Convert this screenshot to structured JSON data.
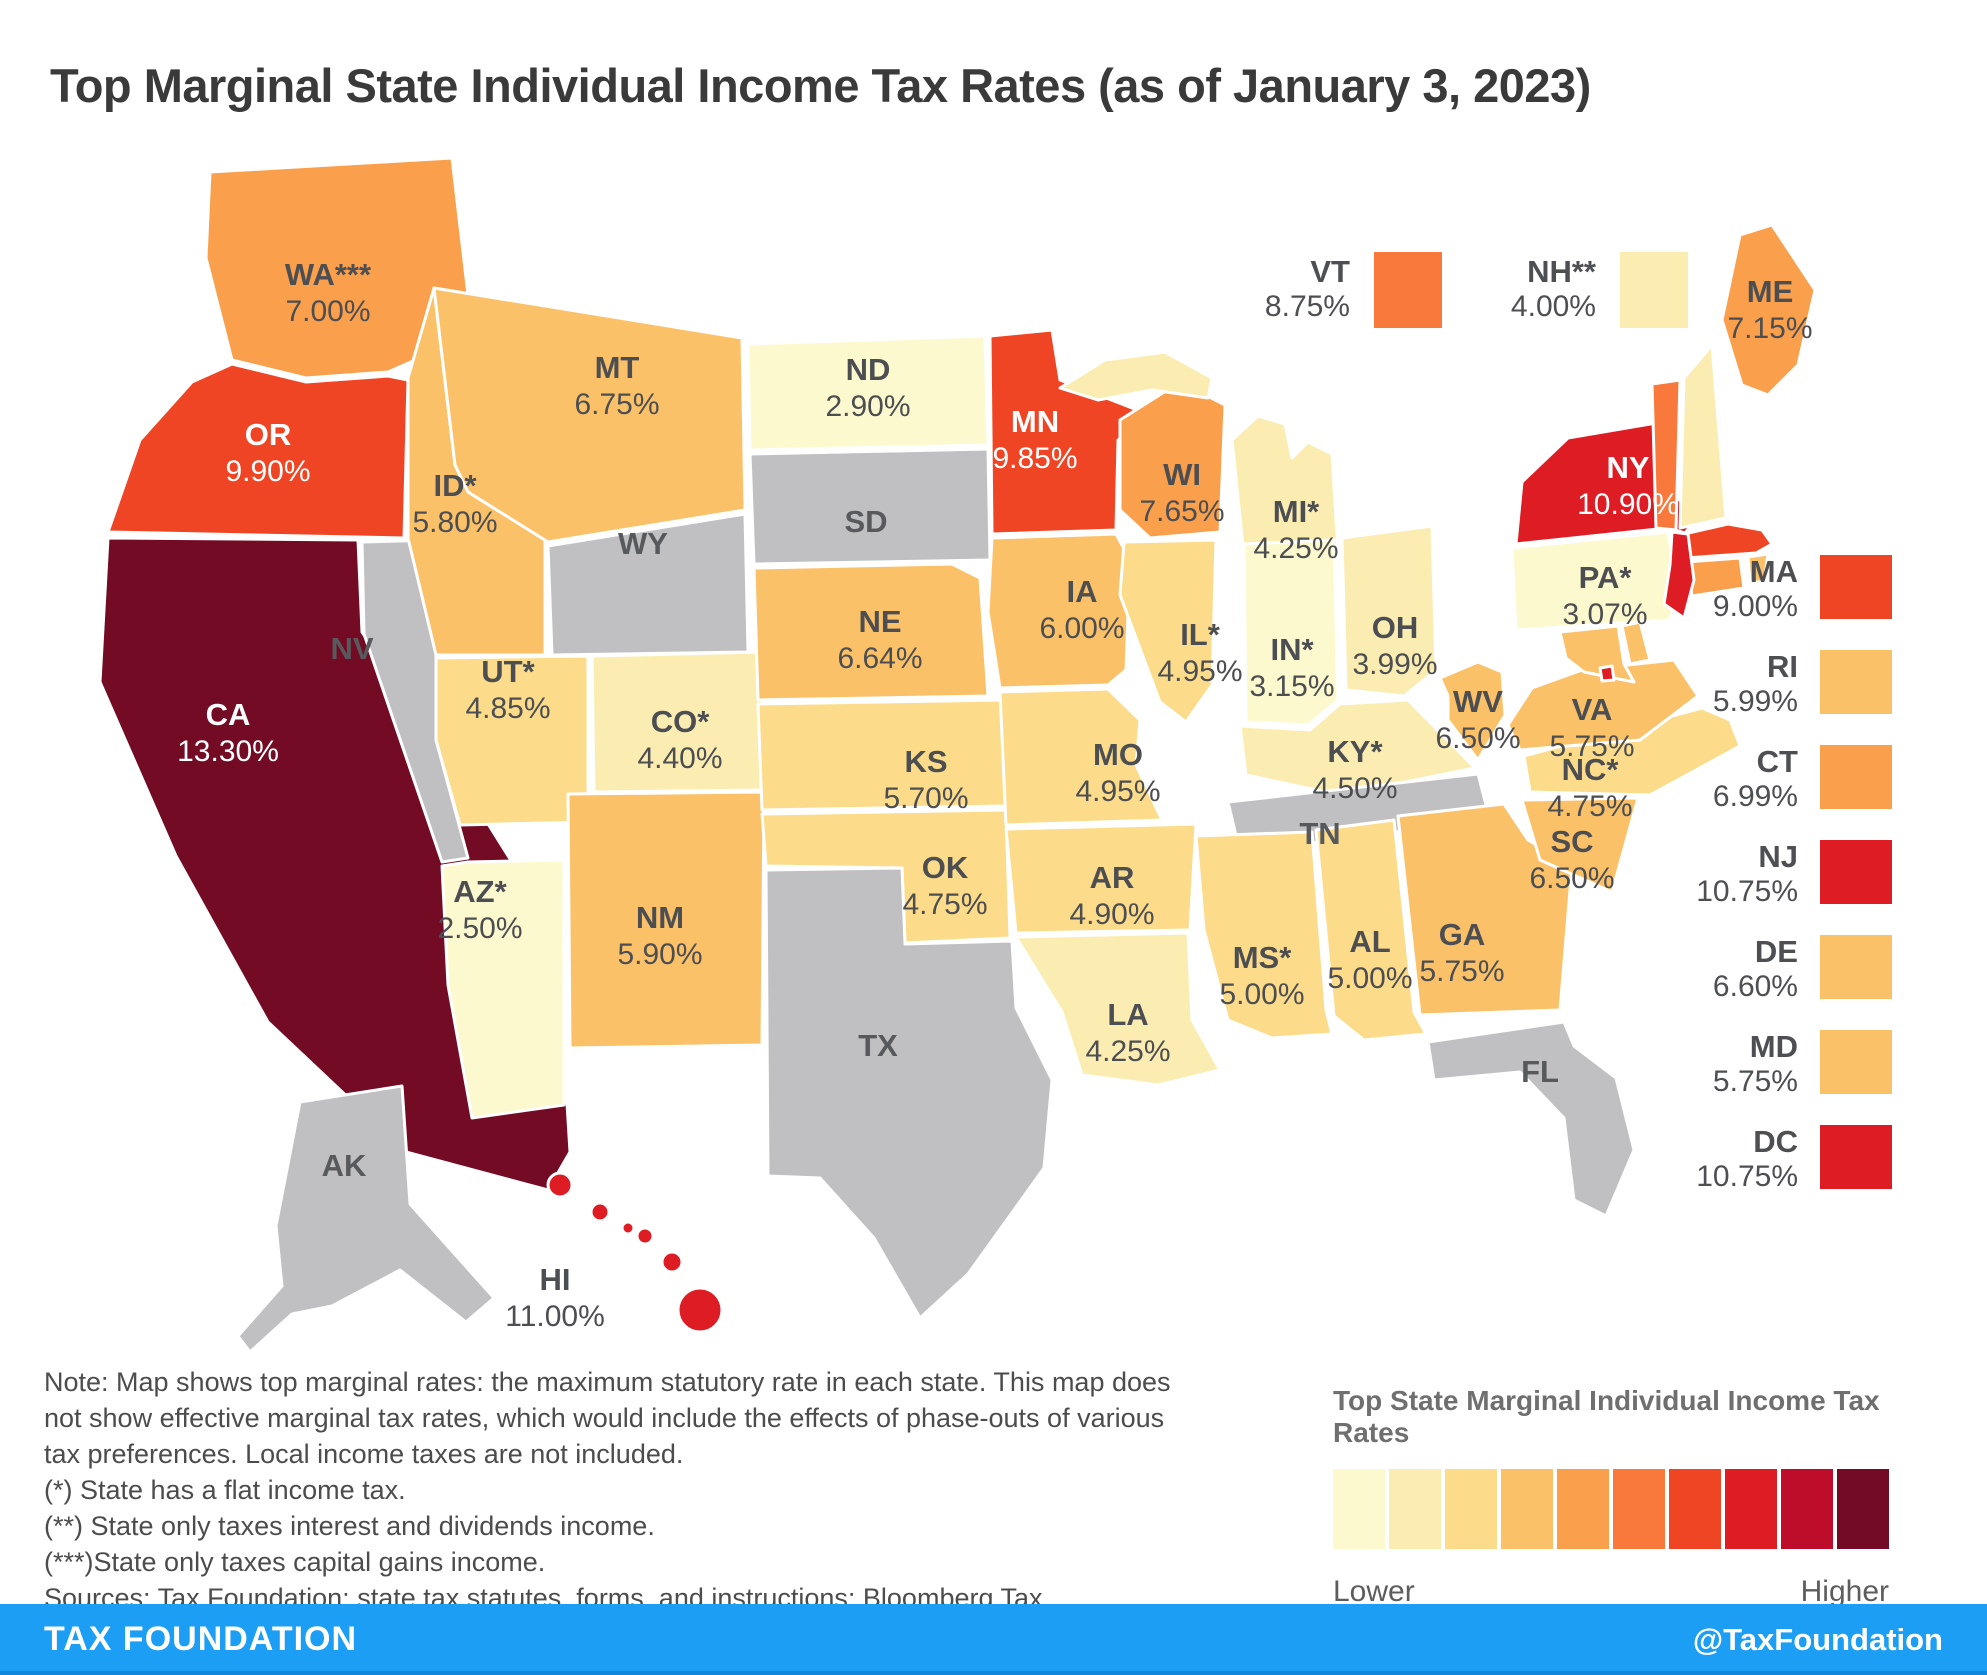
{
  "title": "Top Marginal State Individual Income Tax Rates (as of January 3, 2023)",
  "colors": {
    "no_tax_gray": "#c0c0c2",
    "state_border": "#ffffff",
    "label_dark": "#4d4e52",
    "label_gray_state": "#58595c",
    "label_light": "#ffffff",
    "footer_blue": "#1b9ef3",
    "background": "#ffffff"
  },
  "chart_data": {
    "type": "heatmap",
    "subtype": "us_state_choropleth",
    "title": "Top Marginal State Individual Income Tax Rates (as of January 3, 2023)",
    "unit": "percent",
    "domain": [
      2.5,
      13.3
    ],
    "legend_position": "right-and-bottom",
    "color_scale": {
      "lower": "Lower",
      "higher": "Higher",
      "colors": [
        "#FDF9CE",
        "#FBEDB2",
        "#FCDC8A",
        "#FBC169",
        "#FA9F4C",
        "#F8793B",
        "#F04524",
        "#DD1C24",
        "#BE0C2B",
        "#720B23"
      ]
    },
    "footnotes": {
      "*": "State has a flat income tax.",
      "**": "State only taxes interest and dividends income.",
      "***": "State only taxes capital gains income."
    },
    "states": [
      {
        "id": "AL",
        "map_label": "AL",
        "rate": 5.0,
        "display": "5.00%",
        "show_label_on_map": true
      },
      {
        "id": "AK",
        "map_label": "AK",
        "rate": null,
        "display": "",
        "show_label_on_map": true
      },
      {
        "id": "AZ",
        "map_label": "AZ*",
        "rate": 2.5,
        "display": "2.50%",
        "show_label_on_map": true
      },
      {
        "id": "AR",
        "map_label": "AR",
        "rate": 4.9,
        "display": "4.90%",
        "show_label_on_map": true
      },
      {
        "id": "CA",
        "map_label": "CA",
        "rate": 13.3,
        "display": "13.30%",
        "show_label_on_map": true
      },
      {
        "id": "CO",
        "map_label": "CO*",
        "rate": 4.4,
        "display": "4.40%",
        "show_label_on_map": true
      },
      {
        "id": "CT",
        "map_label": "CT",
        "rate": 6.99,
        "display": "6.99%",
        "show_label_on_map": false
      },
      {
        "id": "DE",
        "map_label": "DE",
        "rate": 6.6,
        "display": "6.60%",
        "show_label_on_map": false
      },
      {
        "id": "DC",
        "map_label": "DC",
        "rate": 10.75,
        "display": "10.75%",
        "show_label_on_map": false
      },
      {
        "id": "FL",
        "map_label": "FL",
        "rate": null,
        "display": "",
        "show_label_on_map": true
      },
      {
        "id": "GA",
        "map_label": "GA",
        "rate": 5.75,
        "display": "5.75%",
        "show_label_on_map": true
      },
      {
        "id": "HI",
        "map_label": "HI",
        "rate": 11.0,
        "display": "11.00%",
        "show_label_on_map": true
      },
      {
        "id": "ID",
        "map_label": "ID*",
        "rate": 5.8,
        "display": "5.80%",
        "show_label_on_map": true
      },
      {
        "id": "IL",
        "map_label": "IL*",
        "rate": 4.95,
        "display": "4.95%",
        "show_label_on_map": true
      },
      {
        "id": "IN",
        "map_label": "IN*",
        "rate": 3.15,
        "display": "3.15%",
        "show_label_on_map": true
      },
      {
        "id": "IA",
        "map_label": "IA",
        "rate": 6.0,
        "display": "6.00%",
        "show_label_on_map": true
      },
      {
        "id": "KS",
        "map_label": "KS",
        "rate": 5.7,
        "display": "5.70%",
        "show_label_on_map": true
      },
      {
        "id": "KY",
        "map_label": "KY*",
        "rate": 4.5,
        "display": "4.50%",
        "show_label_on_map": true
      },
      {
        "id": "LA",
        "map_label": "LA",
        "rate": 4.25,
        "display": "4.25%",
        "show_label_on_map": true
      },
      {
        "id": "ME",
        "map_label": "ME",
        "rate": 7.15,
        "display": "7.15%",
        "show_label_on_map": true
      },
      {
        "id": "MD",
        "map_label": "MD",
        "rate": 5.75,
        "display": "5.75%",
        "show_label_on_map": false
      },
      {
        "id": "MA",
        "map_label": "MA",
        "rate": 9.0,
        "display": "9.00%",
        "show_label_on_map": false
      },
      {
        "id": "MI",
        "map_label": "MI*",
        "rate": 4.25,
        "display": "4.25%",
        "show_label_on_map": true
      },
      {
        "id": "MN",
        "map_label": "MN",
        "rate": 9.85,
        "display": "9.85%",
        "show_label_on_map": true
      },
      {
        "id": "MS",
        "map_label": "MS*",
        "rate": 5.0,
        "display": "5.00%",
        "show_label_on_map": true
      },
      {
        "id": "MO",
        "map_label": "MO",
        "rate": 4.95,
        "display": "4.95%",
        "show_label_on_map": true
      },
      {
        "id": "MT",
        "map_label": "MT",
        "rate": 6.75,
        "display": "6.75%",
        "show_label_on_map": true
      },
      {
        "id": "NE",
        "map_label": "NE",
        "rate": 6.64,
        "display": "6.64%",
        "show_label_on_map": true
      },
      {
        "id": "NV",
        "map_label": "NV",
        "rate": null,
        "display": "",
        "show_label_on_map": true
      },
      {
        "id": "NH",
        "map_label": "NH**",
        "rate": 4.0,
        "display": "4.00%",
        "show_label_on_map": false
      },
      {
        "id": "NJ",
        "map_label": "NJ",
        "rate": 10.75,
        "display": "10.75%",
        "show_label_on_map": false
      },
      {
        "id": "NM",
        "map_label": "NM",
        "rate": 5.9,
        "display": "5.90%",
        "show_label_on_map": true
      },
      {
        "id": "NY",
        "map_label": "NY",
        "rate": 10.9,
        "display": "10.90%",
        "show_label_on_map": true
      },
      {
        "id": "NC",
        "map_label": "NC*",
        "rate": 4.75,
        "display": "4.75%",
        "show_label_on_map": true
      },
      {
        "id": "ND",
        "map_label": "ND",
        "rate": 2.9,
        "display": "2.90%",
        "show_label_on_map": true
      },
      {
        "id": "OH",
        "map_label": "OH",
        "rate": 3.99,
        "display": "3.99%",
        "show_label_on_map": true
      },
      {
        "id": "OK",
        "map_label": "OK",
        "rate": 4.75,
        "display": "4.75%",
        "show_label_on_map": true
      },
      {
        "id": "OR",
        "map_label": "OR",
        "rate": 9.9,
        "display": "9.90%",
        "show_label_on_map": true
      },
      {
        "id": "PA",
        "map_label": "PA*",
        "rate": 3.07,
        "display": "3.07%",
        "show_label_on_map": true
      },
      {
        "id": "RI",
        "map_label": "RI",
        "rate": 5.99,
        "display": "5.99%",
        "show_label_on_map": false
      },
      {
        "id": "SC",
        "map_label": "SC",
        "rate": 6.5,
        "display": "6.50%",
        "show_label_on_map": true
      },
      {
        "id": "SD",
        "map_label": "SD",
        "rate": null,
        "display": "",
        "show_label_on_map": true
      },
      {
        "id": "TN",
        "map_label": "TN",
        "rate": null,
        "display": "",
        "show_label_on_map": true
      },
      {
        "id": "TX",
        "map_label": "TX",
        "rate": null,
        "display": "",
        "show_label_on_map": true
      },
      {
        "id": "UT",
        "map_label": "UT*",
        "rate": 4.85,
        "display": "4.85%",
        "show_label_on_map": true
      },
      {
        "id": "VT",
        "map_label": "VT",
        "rate": 8.75,
        "display": "8.75%",
        "show_label_on_map": false
      },
      {
        "id": "VA",
        "map_label": "VA",
        "rate": 5.75,
        "display": "5.75%",
        "show_label_on_map": true
      },
      {
        "id": "WA",
        "map_label": "WA***",
        "rate": 7.0,
        "display": "7.00%",
        "show_label_on_map": true
      },
      {
        "id": "WV",
        "map_label": "WV",
        "rate": 6.5,
        "display": "6.50%",
        "show_label_on_map": true
      },
      {
        "id": "WI",
        "map_label": "WI",
        "rate": 7.65,
        "display": "7.65%",
        "show_label_on_map": true
      },
      {
        "id": "WY",
        "map_label": "WY",
        "rate": null,
        "display": "",
        "show_label_on_map": true
      }
    ]
  },
  "top_legend": [
    "VT",
    "NH"
  ],
  "side_legend": [
    "MA",
    "RI",
    "CT",
    "NJ",
    "DE",
    "MD",
    "DC"
  ],
  "scale_legend": {
    "title": "Top State Marginal Individual Income Tax Rates",
    "lower_label": "Lower",
    "higher_label": "Higher"
  },
  "notes_lines": [
    "Note: Map shows top marginal rates: the maximum statutory rate in each state. This map does",
    "not show effective marginal tax rates, which would include the effects of phase-outs of various",
    "tax preferences. Local income taxes are not included.",
    "(*) State has a flat income tax.",
    "(**) State only taxes interest and dividends income.",
    "(***)State only taxes capital gains income.",
    "Sources: Tax Foundation; state tax statutes, forms, and instructions; Bloomberg Tax."
  ],
  "footer": {
    "brand": "TAX FOUNDATION",
    "handle": "@TaxFoundation"
  }
}
